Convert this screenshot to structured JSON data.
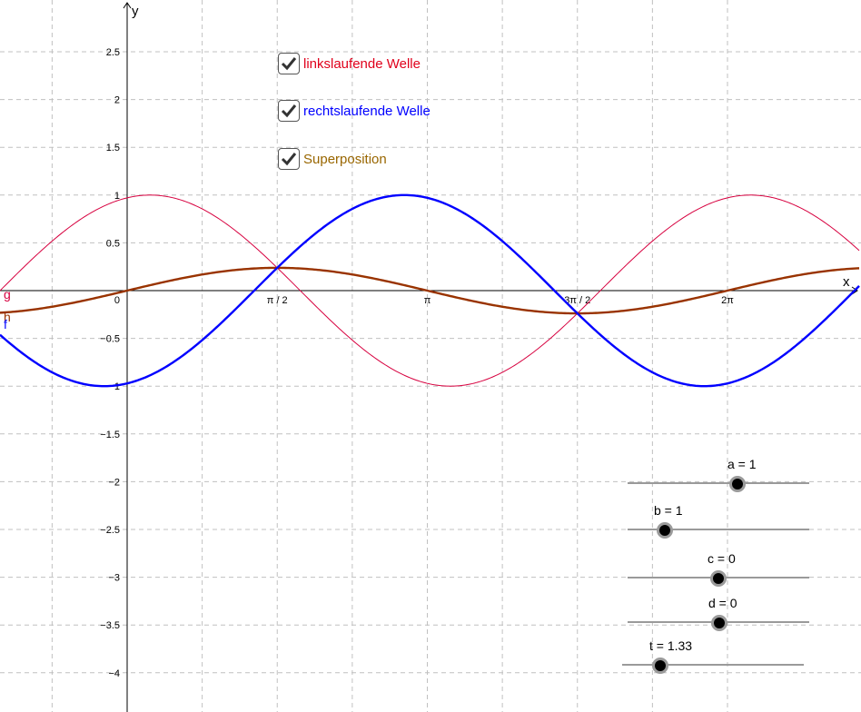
{
  "chart_data": {
    "type": "line",
    "xlabel": "x",
    "ylabel": "y",
    "xlim": [
      -0.72,
      4.77
    ],
    "ylim": [
      -4.4,
      3.0
    ],
    "x_tick_labels": [
      {
        "x": 0,
        "label": "0"
      },
      {
        "x": 1.5708,
        "label": "π / 2"
      },
      {
        "x": 3.1416,
        "label": "π"
      },
      {
        "x": 4.7124,
        "label": "3π / 2"
      },
      {
        "x": 6.2832,
        "label": "2π"
      }
    ],
    "y_ticks": [
      2.5,
      2,
      1.5,
      1,
      0.5,
      -0.5,
      -1,
      -1.5,
      -2,
      -2.5,
      -3,
      -3.5,
      -4
    ],
    "y_tick_labels": [
      "2.5",
      "2",
      "1.5",
      "1",
      "0.5",
      "−0.5",
      "−1",
      "−1.5",
      "−2",
      "−2.5",
      "−3",
      "−3.5",
      "−4"
    ],
    "grid": true,
    "series": [
      {
        "name": "g",
        "color": "#d7003f",
        "expr": "sin(x + t)",
        "stroke": "thin"
      },
      {
        "name": "f",
        "color": "#0000ff",
        "expr": "sin(x − t)",
        "stroke": "thick"
      },
      {
        "name": "h",
        "color": "#993300",
        "expr": "(f + g)/2",
        "stroke": "thick"
      }
    ],
    "params": {
      "a": 1,
      "b": 1,
      "c": 0,
      "d": 0,
      "t": 1.33
    }
  },
  "axis_labels": {
    "x": "x",
    "y": "y"
  },
  "curve_labels": {
    "g": "g",
    "f": "f",
    "h": "h"
  },
  "checkboxes": [
    {
      "label": "linkslaufende Welle",
      "checked": true,
      "color": "#e0001b"
    },
    {
      "label": "rechtslaufende Welle",
      "checked": true,
      "color": "#0000ff"
    },
    {
      "label": "Superposition",
      "checked": true,
      "color": "#996600"
    }
  ],
  "sliders": [
    {
      "label": "a = 1",
      "value": 1
    },
    {
      "label": "b = 1",
      "value": 1
    },
    {
      "label": "c = 0",
      "value": 0
    },
    {
      "label": "d = 0",
      "value": 0
    },
    {
      "label": "t = 1.33",
      "value": 1.33
    }
  ]
}
